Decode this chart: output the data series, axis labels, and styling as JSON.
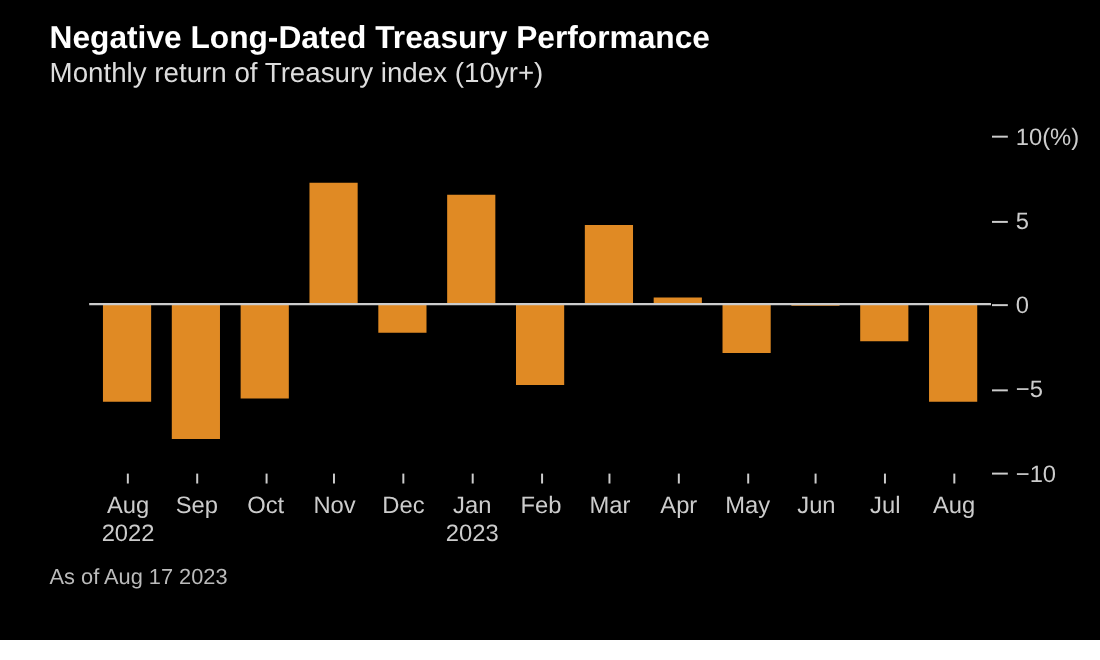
{
  "chart_data": {
    "type": "bar",
    "title": "Negative Long-Dated Treasury Performance",
    "subtitle": "Monthly return of Treasury index (10yr+)",
    "categories": [
      "Aug 2022",
      "Sep",
      "Oct",
      "Nov",
      "Dec",
      "Jan 2023",
      "Feb",
      "Mar",
      "Apr",
      "May",
      "Jun",
      "Jul",
      "Aug"
    ],
    "values": [
      -5.8,
      -8.0,
      -5.6,
      7.2,
      -1.7,
      6.5,
      -4.8,
      4.7,
      0.4,
      -2.9,
      -0.1,
      -2.2,
      -5.8
    ],
    "color": "#e08a24",
    "ylim": [
      -10,
      10
    ],
    "yticks": [
      -10,
      -5,
      0,
      5,
      {
        "value": 10,
        "label": "10(%)"
      }
    ],
    "ref_lines": [
      {
        "axis": "y",
        "value": 0,
        "color": "#cccccc"
      }
    ],
    "grid": false,
    "annotations": [
      "As of Aug 17 2023"
    ]
  }
}
